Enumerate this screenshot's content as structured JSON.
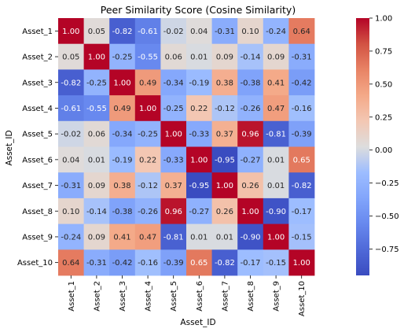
{
  "chart_data": {
    "type": "heatmap",
    "title": "Peer Similarity Score (Cosine Similarity)",
    "xlabel": "Asset_ID",
    "ylabel": "Asset_ID",
    "row_labels": [
      "Asset_1",
      "Asset_2",
      "Asset_3",
      "Asset_4",
      "Asset_5",
      "Asset_6",
      "Asset_7",
      "Asset_8",
      "Asset_9",
      "Asset_10"
    ],
    "col_labels": [
      "Asset_1",
      "Asset_2",
      "Asset_3",
      "Asset_4",
      "Asset_5",
      "Asset_6",
      "Asset_7",
      "Asset_8",
      "Asset_9",
      "Asset_10"
    ],
    "values": [
      [
        1.0,
        0.05,
        -0.82,
        -0.61,
        -0.02,
        0.04,
        -0.31,
        0.1,
        -0.24,
        0.64
      ],
      [
        0.05,
        1.0,
        -0.25,
        -0.55,
        0.06,
        0.01,
        0.09,
        -0.14,
        0.09,
        -0.31
      ],
      [
        -0.82,
        -0.25,
        1.0,
        0.49,
        -0.34,
        -0.19,
        0.38,
        -0.38,
        0.41,
        -0.42
      ],
      [
        -0.61,
        -0.55,
        0.49,
        1.0,
        -0.25,
        0.22,
        -0.12,
        -0.26,
        0.47,
        -0.16
      ],
      [
        -0.02,
        0.06,
        -0.34,
        -0.25,
        1.0,
        -0.33,
        0.37,
        0.96,
        -0.81,
        -0.39
      ],
      [
        0.04,
        0.01,
        -0.19,
        0.22,
        -0.33,
        1.0,
        -0.95,
        -0.27,
        0.01,
        0.65
      ],
      [
        -0.31,
        0.09,
        0.38,
        -0.12,
        0.37,
        -0.95,
        1.0,
        0.26,
        0.01,
        -0.82
      ],
      [
        0.1,
        -0.14,
        -0.38,
        -0.26,
        0.96,
        -0.27,
        0.26,
        1.0,
        -0.9,
        -0.17
      ],
      [
        -0.24,
        0.09,
        0.41,
        0.47,
        -0.81,
        0.01,
        0.01,
        -0.9,
        1.0,
        -0.15
      ],
      [
        0.64,
        -0.31,
        -0.42,
        -0.16,
        -0.39,
        0.65,
        -0.82,
        -0.17,
        -0.15,
        1.0
      ]
    ],
    "value_format": "0.00",
    "colorbar": {
      "colormap": "coolwarm",
      "vmin": -0.95,
      "vmax": 1.0,
      "ticks": [
        1.0,
        0.75,
        0.5,
        0.25,
        0.0,
        -0.25,
        -0.5,
        -0.75
      ],
      "tick_labels": [
        "1.00",
        "0.75",
        "0.50",
        "0.25",
        "0.00",
        "−0.25",
        "−0.50",
        "−0.75"
      ]
    }
  }
}
